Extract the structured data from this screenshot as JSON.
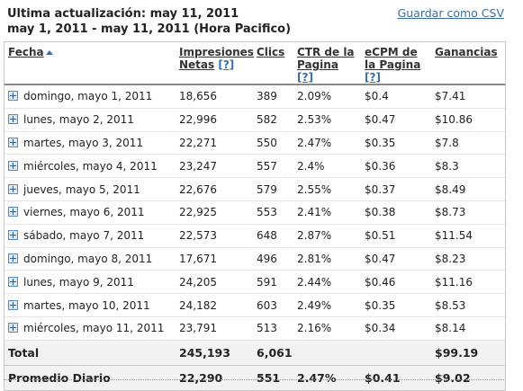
{
  "header": {
    "line1": "Ultima actualización: may 11, 2011",
    "line2": "may 1, 2011 -  may 11, 2011  (Hora Pacifico)",
    "csv_link": "Guardar como CSV"
  },
  "table": {
    "columns": [
      {
        "label": "Fecha",
        "help": ""
      },
      {
        "label": "Impresiones Netas",
        "help": "[?]"
      },
      {
        "label": "Clics",
        "help": ""
      },
      {
        "label": "CTR de la Pagina",
        "help": "[?]"
      },
      {
        "label": "eCPM de la Pagina",
        "help": "[?]"
      },
      {
        "label": "Ganancias",
        "help": ""
      }
    ],
    "rows": [
      {
        "date": "domingo, mayo 1, 2011",
        "impressions": "18,656",
        "clicks": "389",
        "ctr": "2.09%",
        "ecpm": "$0.4",
        "earnings": "$7.41"
      },
      {
        "date": "lunes, mayo 2, 2011",
        "impressions": "22,996",
        "clicks": "582",
        "ctr": "2.53%",
        "ecpm": "$0.47",
        "earnings": "$10.86"
      },
      {
        "date": "martes, mayo 3, 2011",
        "impressions": "22,271",
        "clicks": "550",
        "ctr": "2.47%",
        "ecpm": "$0.35",
        "earnings": "$7.8"
      },
      {
        "date": "miércoles, mayo 4, 2011",
        "impressions": "23,247",
        "clicks": "557",
        "ctr": "2.4%",
        "ecpm": "$0.36",
        "earnings": "$8.3"
      },
      {
        "date": "jueves, mayo 5, 2011",
        "impressions": "22,676",
        "clicks": "579",
        "ctr": "2.55%",
        "ecpm": "$0.37",
        "earnings": "$8.49"
      },
      {
        "date": "viernes, mayo 6, 2011",
        "impressions": "22,925",
        "clicks": "553",
        "ctr": "2.41%",
        "ecpm": "$0.38",
        "earnings": "$8.73"
      },
      {
        "date": "sábado, mayo 7, 2011",
        "impressions": "22,573",
        "clicks": "648",
        "ctr": "2.87%",
        "ecpm": "$0.51",
        "earnings": "$11.54"
      },
      {
        "date": "domingo, mayo 8, 2011",
        "impressions": "17,671",
        "clicks": "496",
        "ctr": "2.81%",
        "ecpm": "$0.47",
        "earnings": "$8.23"
      },
      {
        "date": "lunes, mayo 9, 2011",
        "impressions": "24,205",
        "clicks": "591",
        "ctr": "2.44%",
        "ecpm": "$0.46",
        "earnings": "$11.16"
      },
      {
        "date": "martes, mayo 10, 2011",
        "impressions": "24,182",
        "clicks": "603",
        "ctr": "2.49%",
        "ecpm": "$0.35",
        "earnings": "$8.53"
      },
      {
        "date": "miércoles, mayo 11, 2011",
        "impressions": "23,791",
        "clicks": "513",
        "ctr": "2.16%",
        "ecpm": "$0.34",
        "earnings": "$8.14"
      }
    ],
    "total": {
      "label": "Total",
      "impressions": "245,193",
      "clicks": "6,061",
      "ctr": "",
      "ecpm": "",
      "earnings": "$99.19"
    },
    "average": {
      "label": "Promedio Diario",
      "impressions": "22,290",
      "clicks": "551",
      "ctr": "2.47%",
      "ecpm": "$0.41",
      "earnings": "$9.02"
    }
  },
  "colors": {
    "link": "#3a6ea5",
    "summary_bg": "#f2f2f2"
  },
  "icons": {
    "expand": "plus-box-icon",
    "sort": "sort-ascending-icon"
  }
}
